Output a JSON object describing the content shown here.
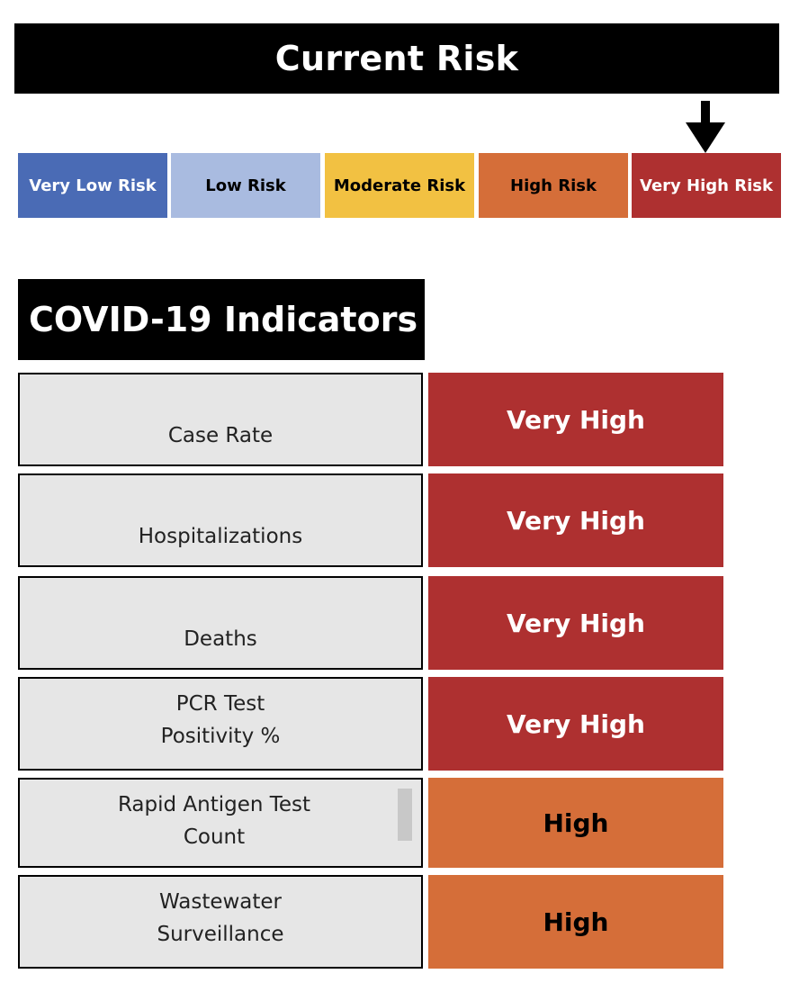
{
  "current_risk": {
    "title": "Current Risk",
    "selected_level": "Very High Risk",
    "levels": [
      {
        "label": "Very Low Risk",
        "color": "#4a6bb5",
        "text_color": "#ffffff"
      },
      {
        "label": "Low Risk",
        "color": "#a9bbe0",
        "text_color": "#000000"
      },
      {
        "label": "Moderate Risk",
        "color": "#f2c142",
        "text_color": "#000000"
      },
      {
        "label": "High Risk",
        "color": "#d56e39",
        "text_color": "#000000"
      },
      {
        "label": "Very High Risk",
        "color": "#ae3030",
        "text_color": "#ffffff"
      }
    ]
  },
  "indicators": {
    "title": "COVID-19 Indicators",
    "rows": [
      {
        "name": "Case Rate",
        "value": "Very High",
        "color": "#ae3030",
        "text_color": "#ffffff"
      },
      {
        "name": "Hospitalizations",
        "value": "Very High",
        "color": "#ae3030",
        "text_color": "#ffffff"
      },
      {
        "name": "Deaths",
        "value": "Very High",
        "color": "#ae3030",
        "text_color": "#ffffff"
      },
      {
        "name": "PCR Test\nPositivity %",
        "value": "Very High",
        "color": "#ae3030",
        "text_color": "#ffffff"
      },
      {
        "name": "Rapid Antigen Test\nCount",
        "value": "High",
        "color": "#d56e39",
        "text_color": "#000000"
      },
      {
        "name": "Wastewater\nSurveillance",
        "value": "High",
        "color": "#d56e39",
        "text_color": "#000000"
      }
    ]
  }
}
